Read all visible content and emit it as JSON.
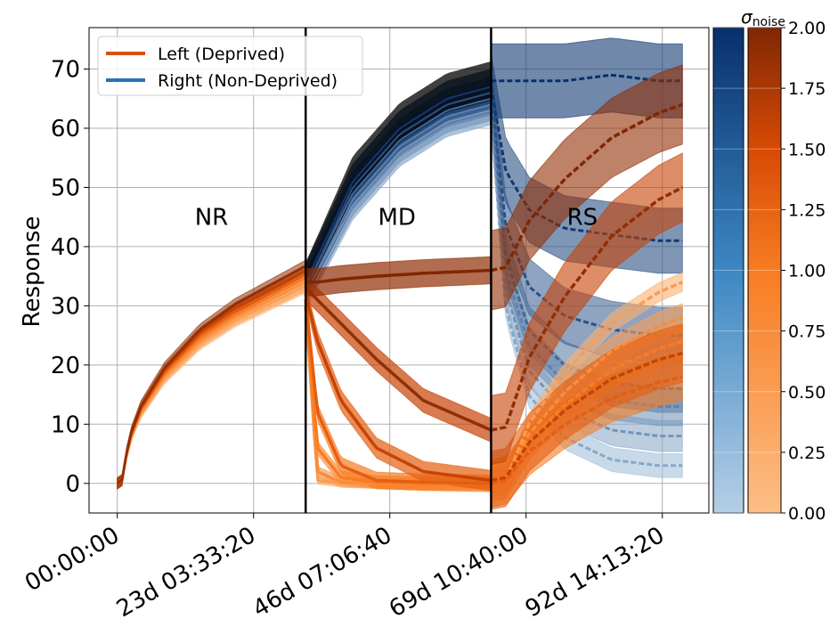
{
  "chart_data": {
    "type": "line",
    "ylabel": "Response",
    "ylim": [
      -5,
      77
    ],
    "x_ticks": [
      "00:00:00",
      "23d 03:33:20",
      "46d 07:06:40",
      "69d 10:40:00",
      "92d 14:13:20"
    ],
    "x_tick_days": [
      0,
      23.148,
      46.296,
      69.444,
      92.593
    ],
    "xlim_days": [
      -4.8,
      100.5
    ],
    "y_ticks": [
      0,
      10,
      20,
      30,
      40,
      50,
      60,
      70
    ],
    "grid": true,
    "phase_boundaries_days": [
      32,
      63.5
    ],
    "phase_labels": [
      {
        "text": "NR",
        "x_day": 16,
        "y": 45
      },
      {
        "text": "MD",
        "x_day": 47.5,
        "y": 45
      },
      {
        "text": "RS",
        "x_day": 79,
        "y": 45
      }
    ],
    "legend": {
      "placement": "upper-left",
      "entries": [
        {
          "label": "Left (Deprived)",
          "color": "#d4520a"
        },
        {
          "label": "Right (Non-Deprived)",
          "color": "#2a72b5"
        }
      ]
    },
    "colorbar": {
      "label": "σnoise",
      "range": [
        0,
        2
      ],
      "ticks": [
        "0.00",
        "0.25",
        "0.50",
        "0.75",
        "1.00",
        "1.25",
        "1.50",
        "1.75",
        "2.00"
      ],
      "blue_low": "#b5cfe6",
      "blue_high": "#08306b",
      "orange_low": "#fdbe85",
      "orange_high": "#7f2704"
    },
    "sigma_levels": [
      0.2,
      0.45,
      0.7,
      1.0,
      1.3,
      1.6,
      1.9
    ],
    "series": [
      {
        "side": "right",
        "phase": "MD",
        "x": [
          32,
          40,
          48,
          56,
          63.5
        ],
        "y_per_sigma": [
          [
            31,
            46,
            55,
            60,
            62
          ],
          [
            32,
            47,
            56,
            61,
            63
          ],
          [
            32,
            48,
            57,
            62,
            64
          ],
          [
            33,
            49,
            58,
            63,
            65
          ],
          [
            33,
            50,
            59,
            64,
            66
          ],
          [
            34,
            51,
            60,
            65,
            67
          ],
          [
            34,
            52,
            61,
            66,
            68
          ]
        ]
      },
      {
        "side": "left",
        "phase": "MD",
        "x": [
          32,
          34,
          38,
          44,
          52,
          63.5
        ],
        "y_per_sigma": [
          [
            30,
            0.5,
            0,
            0,
            0,
            0
          ],
          [
            30,
            2,
            0.2,
            0,
            0,
            0
          ],
          [
            31,
            6,
            1,
            0.2,
            0,
            0
          ],
          [
            31,
            12,
            3,
            0.5,
            0.2,
            0
          ],
          [
            32,
            24,
            14,
            6,
            2,
            0.5
          ],
          [
            33,
            31,
            27,
            21,
            14,
            9
          ],
          [
            34,
            34,
            34.5,
            35,
            35.5,
            36
          ]
        ]
      }
    ],
    "nr_curve": {
      "x": [
        0,
        0.8,
        2,
        4,
        8,
        14,
        20,
        26,
        32
      ],
      "y": [
        0,
        0.5,
        7,
        12,
        18,
        24,
        28,
        31,
        34
      ]
    }
  }
}
